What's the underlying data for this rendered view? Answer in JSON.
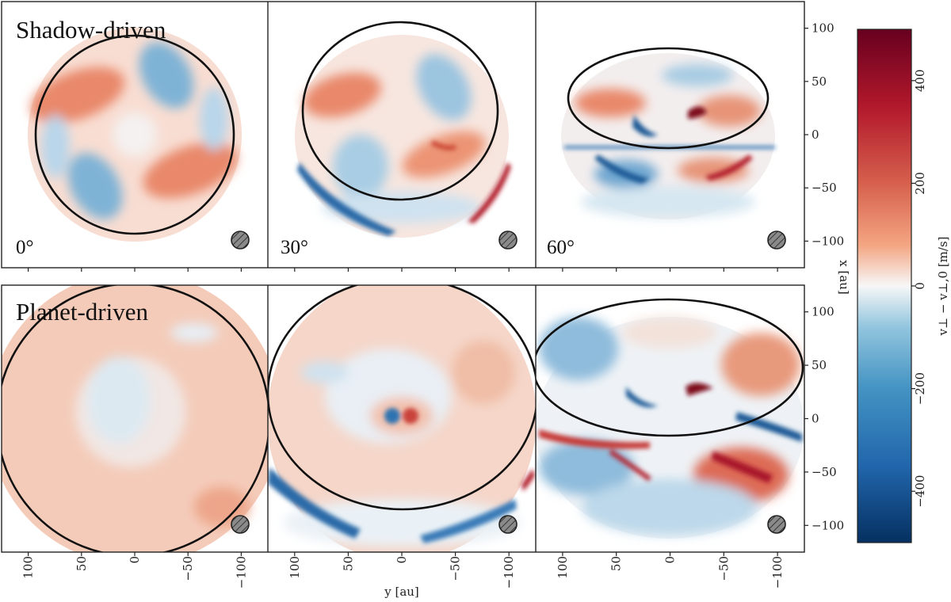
{
  "chart_data": {
    "type": "heatmap",
    "rows": [
      {
        "title": "Shadow-driven",
        "panels": [
          {
            "angle": "0°"
          },
          {
            "angle": "30°"
          },
          {
            "angle": "60°"
          }
        ]
      },
      {
        "title": "Planet-driven",
        "panels": [
          {
            "angle": ""
          },
          {
            "angle": ""
          },
          {
            "angle": ""
          }
        ]
      }
    ],
    "xlabel": "y [au]",
    "ylabel": "x [au]",
    "x_ticks": [
      100,
      50,
      0,
      -50,
      -100
    ],
    "y_ticks": [
      100,
      50,
      0,
      -50,
      -100
    ],
    "xlim": [
      125,
      -125
    ],
    "ylim": [
      -125,
      125
    ],
    "colorbar": {
      "label": "v⊥ − v⊥,0 [m/s]",
      "ticks": [
        400,
        200,
        0,
        -200,
        -400
      ],
      "range": [
        -500,
        500
      ],
      "colormap": "RdBu_r"
    }
  },
  "colors": {
    "red_dark": "#67001f",
    "red": "#c2383a",
    "red_light": "#f4a582",
    "white": "#f7f7f7",
    "blue_light": "#92c5de",
    "blue": "#3a7bb8",
    "blue_dark": "#053061"
  }
}
